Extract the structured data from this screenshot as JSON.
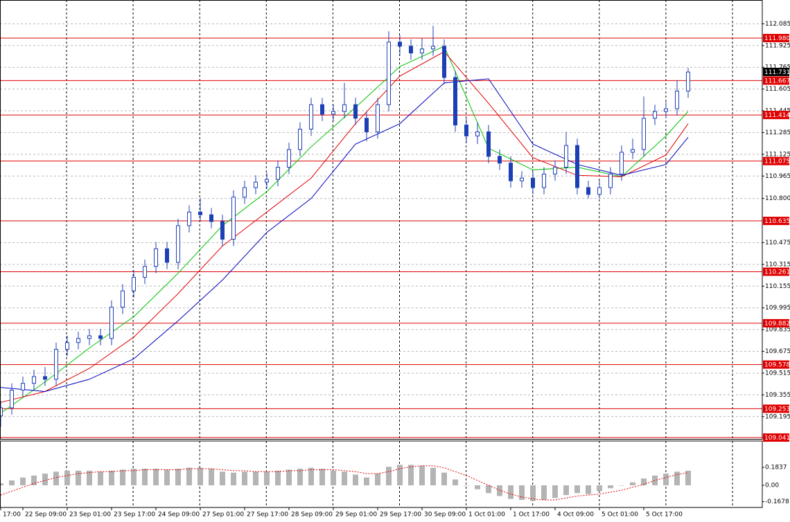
{
  "chart_data": [
    {
      "type": "candlestick",
      "categories": [
        "17:00",
        null,
        "22 Sep 09:00",
        null,
        null,
        null,
        "23 Sep 01:00",
        null,
        null,
        null,
        "23 Sep 17:00",
        null,
        null,
        null,
        "24 Sep 09:00",
        null,
        null,
        null,
        "27 Sep 01:00",
        null,
        null,
        null,
        "27 Sep 17:00",
        null,
        null,
        null,
        "28 Sep 09:00",
        null,
        null,
        null,
        "29 Sep 01:00",
        null,
        null,
        null,
        "29 Sep 17:00",
        null,
        null,
        null,
        "30 Sep 09:00",
        null,
        null,
        null,
        "1 Oct 01:00",
        null,
        null,
        null,
        "1 Oct 17:00",
        null,
        null,
        null,
        "4 Oct 09:00",
        null,
        null,
        null,
        "5 Oct 01:00",
        null,
        null,
        null,
        "5 Oct 17:00",
        null,
        null,
        null,
        null
      ],
      "ohlc": [
        [
          109.2,
          109.31,
          109.12,
          109.26
        ],
        [
          109.26,
          109.44,
          109.21,
          109.39
        ],
        [
          109.39,
          109.49,
          109.34,
          109.44
        ],
        [
          109.44,
          109.54,
          109.39,
          109.49
        ],
        [
          109.49,
          109.56,
          109.42,
          109.47
        ],
        [
          109.47,
          109.74,
          109.42,
          109.69
        ],
        [
          109.69,
          109.79,
          109.64,
          109.74
        ],
        [
          109.74,
          109.82,
          109.69,
          109.77
        ],
        [
          109.77,
          109.84,
          109.72,
          109.79
        ],
        [
          109.79,
          109.84,
          109.72,
          109.77
        ],
        [
          109.77,
          110.05,
          109.72,
          110.0
        ],
        [
          110.0,
          110.17,
          109.95,
          110.12
        ],
        [
          110.12,
          110.27,
          110.07,
          110.22
        ],
        [
          110.22,
          110.35,
          110.17,
          110.3
        ],
        [
          110.3,
          110.48,
          110.25,
          110.43
        ],
        [
          110.43,
          110.48,
          110.28,
          110.33
        ],
        [
          110.33,
          110.65,
          110.28,
          110.6
        ],
        [
          110.6,
          110.75,
          110.55,
          110.7
        ],
        [
          110.7,
          110.8,
          110.63,
          110.68
        ],
        [
          110.68,
          110.73,
          110.58,
          110.63
        ],
        [
          110.63,
          110.68,
          110.45,
          110.5
        ],
        [
          110.5,
          110.86,
          110.45,
          110.81
        ],
        [
          110.81,
          110.93,
          110.76,
          110.88
        ],
        [
          110.88,
          110.97,
          110.83,
          110.92
        ],
        [
          110.92,
          110.99,
          110.87,
          110.94
        ],
        [
          110.94,
          111.08,
          110.89,
          111.03
        ],
        [
          111.03,
          111.21,
          110.98,
          111.16
        ],
        [
          111.16,
          111.36,
          111.11,
          111.31
        ],
        [
          111.31,
          111.54,
          111.26,
          111.49
        ],
        [
          111.49,
          111.54,
          111.37,
          111.42
        ],
        [
          111.42,
          111.49,
          111.37,
          111.44
        ],
        [
          111.44,
          111.65,
          111.39,
          111.49
        ],
        [
          111.49,
          111.54,
          111.34,
          111.39
        ],
        [
          111.39,
          111.44,
          111.22,
          111.29
        ],
        [
          111.29,
          111.54,
          111.24,
          111.49
        ],
        [
          111.49,
          112.03,
          111.44,
          111.95
        ],
        [
          111.95,
          112.0,
          111.85,
          111.92
        ],
        [
          111.92,
          111.97,
          111.82,
          111.87
        ],
        [
          111.87,
          111.98,
          111.82,
          111.9
        ],
        [
          111.9,
          112.07,
          111.85,
          111.92
        ],
        [
          111.92,
          111.97,
          111.64,
          111.69
        ],
        [
          111.69,
          111.74,
          111.29,
          111.34
        ],
        [
          111.34,
          111.39,
          111.21,
          111.26
        ],
        [
          111.26,
          111.36,
          111.2,
          111.29
        ],
        [
          111.29,
          111.34,
          111.06,
          111.11
        ],
        [
          111.11,
          111.16,
          111.01,
          111.06
        ],
        [
          111.06,
          111.11,
          110.88,
          110.93
        ],
        [
          110.93,
          111.0,
          110.88,
          110.95
        ],
        [
          110.95,
          111.0,
          110.83,
          110.88
        ],
        [
          110.88,
          111.03,
          110.83,
          110.98
        ],
        [
          110.98,
          111.08,
          110.93,
          111.03
        ],
        [
          111.03,
          111.29,
          110.98,
          111.19
        ],
        [
          111.19,
          111.24,
          110.83,
          110.88
        ],
        [
          110.88,
          110.93,
          110.8,
          110.83
        ],
        [
          110.83,
          110.93,
          110.8,
          110.88
        ],
        [
          110.88,
          111.03,
          110.83,
          110.98
        ],
        [
          110.98,
          111.19,
          110.93,
          111.14
        ],
        [
          111.14,
          111.24,
          111.09,
          111.16
        ],
        [
          111.16,
          111.55,
          111.11,
          111.39
        ],
        [
          111.39,
          111.49,
          111.34,
          111.44
        ],
        [
          111.44,
          111.51,
          111.39,
          111.46
        ],
        [
          111.46,
          111.67,
          111.41,
          111.59
        ],
        [
          111.59,
          111.76,
          111.54,
          111.73
        ]
      ],
      "color": "#1c3fb5",
      "series": [
        {
          "color": "#00c000",
          "x": [
            0,
            4,
            8,
            12,
            16,
            20,
            24,
            28,
            32,
            36,
            40,
            44,
            48,
            52,
            56,
            60,
            62
          ],
          "values": [
            109.22,
            109.45,
            109.7,
            109.93,
            110.25,
            110.6,
            110.85,
            111.18,
            111.47,
            111.77,
            111.92,
            111.17,
            111.01,
            111.03,
            110.96,
            111.26,
            111.44
          ]
        },
        {
          "color": "#e00000",
          "x": [
            0,
            4,
            8,
            12,
            16,
            20,
            24,
            28,
            32,
            36,
            40,
            44,
            48,
            52,
            56,
            60,
            62
          ],
          "values": [
            109.3,
            109.38,
            109.55,
            109.78,
            110.1,
            110.45,
            110.7,
            110.95,
            111.35,
            111.7,
            111.88,
            111.5,
            111.1,
            110.97,
            110.96,
            111.12,
            111.35
          ]
        },
        {
          "color": "#0000c0",
          "x": [
            0,
            4,
            8,
            12,
            16,
            20,
            24,
            28,
            32,
            36,
            40,
            44,
            48,
            52,
            56,
            60,
            62
          ],
          "values": [
            109.41,
            109.38,
            109.47,
            109.62,
            109.9,
            110.2,
            110.55,
            110.8,
            111.2,
            111.35,
            111.65,
            111.68,
            111.2,
            111.05,
            110.97,
            111.05,
            111.25
          ]
        }
      ],
      "levels": [
        {
          "value": 111.98,
          "label": "111.980"
        },
        111.667,
        111.414,
        111.075,
        110.635,
        110.261,
        109.882,
        109.578,
        109.253,
        109.041
      ],
      "level_color": "#e00000",
      "last_price": 111.731,
      "ylim": [
        109.031,
        112.26
      ],
      "yticks": [
        112.085,
        111.925,
        111.765,
        111.605,
        111.445,
        111.285,
        111.125,
        110.965,
        {
          "value": 110.8,
          "label": "110.800"
        },
        110.475,
        110.315,
        110.155,
        109.995,
        109.835,
        109.675,
        109.515,
        109.355,
        109.195
      ],
      "grid": true
    },
    {
      "type": "macd",
      "histogram": [
        0.02,
        0.05,
        0.08,
        0.1,
        0.12,
        0.14,
        0.15,
        0.15,
        0.15,
        0.14,
        0.15,
        0.16,
        0.17,
        0.17,
        0.17,
        0.16,
        0.17,
        0.18,
        0.18,
        0.17,
        0.14,
        0.13,
        0.14,
        0.14,
        0.14,
        0.15,
        0.16,
        0.17,
        0.18,
        0.17,
        0.15,
        0.14,
        0.11,
        0.08,
        0.12,
        0.19,
        0.21,
        0.21,
        0.2,
        0.18,
        0.13,
        0.06,
        0.0,
        -0.04,
        -0.08,
        -0.11,
        -0.14,
        -0.15,
        -0.16,
        -0.15,
        -0.13,
        -0.1,
        -0.08,
        -0.09,
        -0.06,
        -0.03,
        0.0,
        0.03,
        0.07,
        0.1,
        0.12,
        0.14,
        0.15
      ],
      "histogram_color": "#b4b4b4",
      "signal": [
        -0.1,
        -0.06,
        -0.02,
        0.02,
        0.05,
        0.08,
        0.1,
        0.12,
        0.13,
        0.14,
        0.14,
        0.15,
        0.15,
        0.16,
        0.16,
        0.16,
        0.16,
        0.17,
        0.17,
        0.17,
        0.16,
        0.15,
        0.15,
        0.14,
        0.14,
        0.14,
        0.15,
        0.15,
        0.16,
        0.16,
        0.16,
        0.15,
        0.14,
        0.12,
        0.12,
        0.14,
        0.17,
        0.19,
        0.2,
        0.2,
        0.18,
        0.14,
        0.1,
        0.05,
        0.0,
        -0.05,
        -0.09,
        -0.12,
        -0.14,
        -0.15,
        -0.15,
        -0.13,
        -0.11,
        -0.1,
        -0.09,
        -0.07,
        -0.05,
        -0.02,
        0.01,
        0.05,
        0.08,
        0.11,
        0.13
      ],
      "signal_color": "#e00000",
      "ylim": [
        -0.227,
        0.454
      ],
      "yticks": [
        0.1837,
        {
          "value": 0,
          "label": "0.00"
        },
        -0.1678
      ]
    }
  ]
}
